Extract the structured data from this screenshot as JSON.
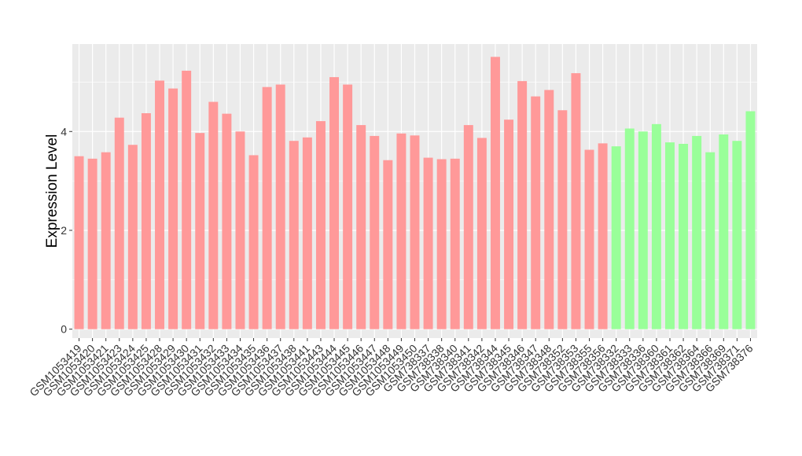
{
  "chart_data": {
    "type": "bar",
    "ylabel": "Expression Level",
    "xlabel": "",
    "ylim": [
      -0.18,
      5.77
    ],
    "yticks": [
      0,
      2,
      4
    ],
    "grid": true,
    "legend": "none",
    "colors": {
      "group1": "#ff9999",
      "group2": "#99ff99",
      "panel": "#ebebeb",
      "grid": "#ffffff"
    },
    "categories": [
      "GSM1053419",
      "GSM1053420",
      "GSM1053421",
      "GSM1053423",
      "GSM1053424",
      "GSM1053425",
      "GSM1053428",
      "GSM1053429",
      "GSM1053430",
      "GSM1053431",
      "GSM1053432",
      "GSM1053433",
      "GSM1053434",
      "GSM1053435",
      "GSM1053436",
      "GSM1053437",
      "GSM1053438",
      "GSM1053441",
      "GSM1053443",
      "GSM1053444",
      "GSM1053445",
      "GSM1053446",
      "GSM1053447",
      "GSM1053448",
      "GSM1053449",
      "GSM1053450",
      "GSM738337",
      "GSM738338",
      "GSM738340",
      "GSM738341",
      "GSM738342",
      "GSM738344",
      "GSM738345",
      "GSM738346",
      "GSM738347",
      "GSM738348",
      "GSM738352",
      "GSM738353",
      "GSM738355",
      "GSM738356",
      "GSM738332",
      "GSM738333",
      "GSM738336",
      "GSM738360",
      "GSM738361",
      "GSM738362",
      "GSM738364",
      "GSM738366",
      "GSM738369",
      "GSM738371",
      "GSM738376"
    ],
    "values": [
      3.5,
      3.45,
      3.58,
      4.28,
      3.73,
      4.37,
      5.03,
      4.87,
      5.23,
      3.97,
      4.6,
      4.36,
      4.0,
      3.52,
      4.9,
      4.95,
      3.81,
      3.88,
      4.21,
      5.1,
      4.95,
      4.13,
      3.91,
      3.42,
      3.96,
      3.92,
      3.47,
      3.44,
      3.45,
      4.13,
      3.87,
      5.51,
      4.24,
      5.02,
      4.71,
      4.84,
      4.43,
      5.18,
      3.63,
      3.76,
      3.7,
      4.06,
      4.0,
      4.15,
      3.78,
      3.75,
      3.91,
      3.58,
      3.94,
      3.81,
      4.41
    ],
    "groups": [
      1,
      1,
      1,
      1,
      1,
      1,
      1,
      1,
      1,
      1,
      1,
      1,
      1,
      1,
      1,
      1,
      1,
      1,
      1,
      1,
      1,
      1,
      1,
      1,
      1,
      1,
      1,
      1,
      1,
      1,
      1,
      1,
      1,
      1,
      1,
      1,
      1,
      1,
      1,
      1,
      2,
      2,
      2,
      2,
      2,
      2,
      2,
      2,
      2,
      2,
      2
    ]
  }
}
